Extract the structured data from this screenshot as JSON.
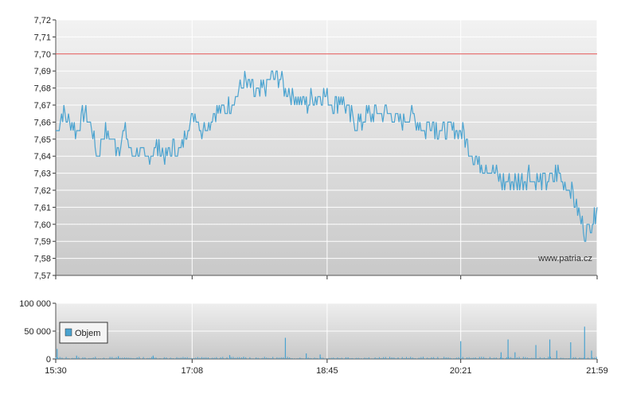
{
  "chart_data": [
    {
      "type": "line",
      "x_ticks": [
        "15:30",
        "17:08",
        "18:45",
        "20:21",
        "21:59"
      ],
      "y_ticks": [
        "7,57",
        "7,58",
        "7,59",
        "7,60",
        "7,61",
        "7,62",
        "7,63",
        "7,64",
        "7,65",
        "7,66",
        "7,67",
        "7,68",
        "7,69",
        "7,70",
        "7,71",
        "7,72"
      ],
      "ylim": [
        7.57,
        7.72
      ],
      "grid": true,
      "reference_line": {
        "value": 7.7,
        "color": "#e05050"
      },
      "watermark": "www.patria.cz",
      "series": [
        {
          "color": "#4aa3d0",
          "keypoints": [
            [
              "15:30",
              7.655
            ],
            [
              "15:35",
              7.665
            ],
            [
              "15:40",
              7.66
            ],
            [
              "15:45",
              7.655
            ],
            [
              "15:50",
              7.665
            ],
            [
              "15:55",
              7.66
            ],
            [
              "16:00",
              7.64
            ],
            [
              "16:05",
              7.655
            ],
            [
              "16:10",
              7.65
            ],
            [
              "16:15",
              7.645
            ],
            [
              "16:20",
              7.655
            ],
            [
              "16:25",
              7.64
            ],
            [
              "16:30",
              7.645
            ],
            [
              "16:35",
              7.635
            ],
            [
              "16:40",
              7.645
            ],
            [
              "16:45",
              7.645
            ],
            [
              "16:50",
              7.64
            ],
            [
              "16:55",
              7.645
            ],
            [
              "17:00",
              7.645
            ],
            [
              "17:05",
              7.66
            ],
            [
              "17:10",
              7.665
            ],
            [
              "17:15",
              7.655
            ],
            [
              "17:20",
              7.66
            ],
            [
              "17:25",
              7.665
            ],
            [
              "17:30",
              7.665
            ],
            [
              "17:35",
              7.67
            ],
            [
              "17:40",
              7.675
            ],
            [
              "17:45",
              7.685
            ],
            [
              "17:50",
              7.68
            ],
            [
              "17:55",
              7.675
            ],
            [
              "18:00",
              7.68
            ],
            [
              "18:05",
              7.685
            ],
            [
              "18:10",
              7.685
            ],
            [
              "18:15",
              7.68
            ],
            [
              "18:20",
              7.675
            ],
            [
              "18:25",
              7.675
            ],
            [
              "18:30",
              7.67
            ],
            [
              "18:35",
              7.675
            ],
            [
              "18:40",
              7.675
            ],
            [
              "18:45",
              7.675
            ],
            [
              "18:50",
              7.67
            ],
            [
              "18:55",
              7.675
            ],
            [
              "19:00",
              7.665
            ],
            [
              "19:05",
              7.66
            ],
            [
              "19:10",
              7.66
            ],
            [
              "19:15",
              7.665
            ],
            [
              "19:20",
              7.665
            ],
            [
              "19:25",
              7.665
            ],
            [
              "19:30",
              7.665
            ],
            [
              "19:35",
              7.66
            ],
            [
              "19:40",
              7.66
            ],
            [
              "19:45",
              7.665
            ],
            [
              "19:50",
              7.66
            ],
            [
              "19:55",
              7.655
            ],
            [
              "20:00",
              7.66
            ],
            [
              "20:05",
              7.655
            ],
            [
              "20:10",
              7.655
            ],
            [
              "20:15",
              7.655
            ],
            [
              "20:20",
              7.655
            ],
            [
              "20:25",
              7.65
            ],
            [
              "20:30",
              7.64
            ],
            [
              "20:35",
              7.635
            ],
            [
              "20:40",
              7.635
            ],
            [
              "20:45",
              7.63
            ],
            [
              "20:50",
              7.625
            ],
            [
              "20:55",
              7.625
            ],
            [
              "21:00",
              7.625
            ],
            [
              "21:05",
              7.625
            ],
            [
              "21:10",
              7.63
            ],
            [
              "21:15",
              7.625
            ],
            [
              "21:20",
              7.625
            ],
            [
              "21:25",
              7.625
            ],
            [
              "21:30",
              7.63
            ],
            [
              "21:35",
              7.625
            ],
            [
              "21:40",
              7.62
            ],
            [
              "21:45",
              7.61
            ],
            [
              "21:50",
              7.595
            ],
            [
              "21:55",
              7.6
            ],
            [
              "21:59",
              7.61
            ]
          ]
        }
      ]
    },
    {
      "type": "bar",
      "legend": [
        "Objem"
      ],
      "x_ticks": [
        "15:30",
        "17:08",
        "18:45",
        "20:21",
        "21:59"
      ],
      "y_ticks": [
        "0",
        "50 000",
        "100 000"
      ],
      "ylim": [
        0,
        100000
      ],
      "grid": true,
      "series": [
        {
          "name": "Objem",
          "color": "#4aa3d0",
          "spikes": [
            [
              "15:31",
              18000
            ],
            [
              "15:45",
              6000
            ],
            [
              "16:15",
              5000
            ],
            [
              "16:40",
              6000
            ],
            [
              "17:35",
              7000
            ],
            [
              "17:45",
              4000
            ],
            [
              "18:15",
              38000
            ],
            [
              "18:30",
              10000
            ],
            [
              "18:40",
              8000
            ],
            [
              "19:00",
              3000
            ],
            [
              "20:21",
              32000
            ],
            [
              "20:50",
              12000
            ],
            [
              "20:55",
              35000
            ],
            [
              "21:00",
              12000
            ],
            [
              "21:15",
              25000
            ],
            [
              "21:25",
              35000
            ],
            [
              "21:30",
              15000
            ],
            [
              "21:40",
              30000
            ],
            [
              "21:50",
              58000
            ],
            [
              "21:55",
              15000
            ]
          ],
          "baseline_range": [
            500,
            4000
          ]
        }
      ]
    }
  ]
}
